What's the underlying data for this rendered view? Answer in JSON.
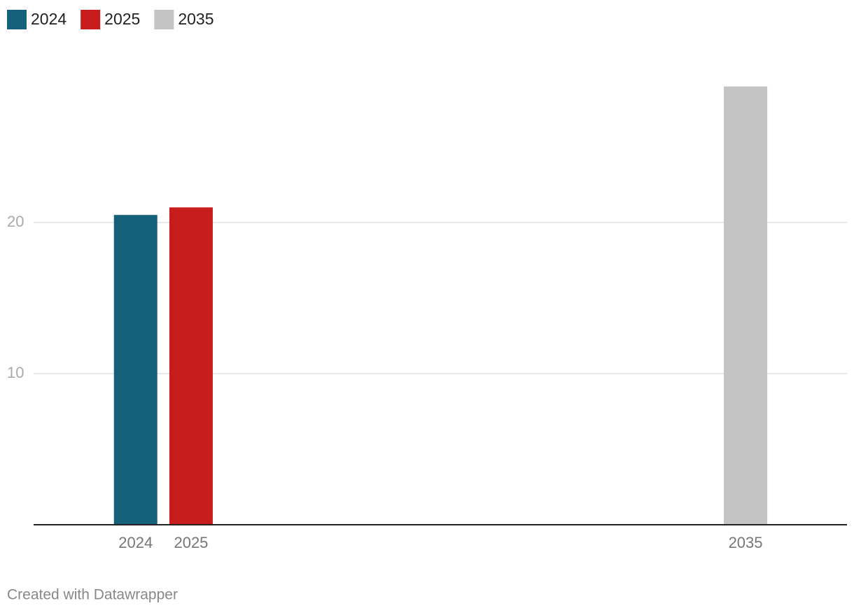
{
  "chart_data": {
    "type": "bar",
    "x": [
      2024,
      2025,
      2035
    ],
    "series": [
      {
        "name": "2024",
        "color": "#15607a",
        "values": [
          20.5,
          null,
          null
        ]
      },
      {
        "name": "2025",
        "color": "#c71e1d",
        "values": [
          null,
          21,
          null
        ]
      },
      {
        "name": "2035",
        "color": "#c4c4c4",
        "values": [
          null,
          null,
          29
        ]
      }
    ],
    "xlim": [
      2022.16,
      2036.83
    ],
    "ylim": [
      0,
      30
    ],
    "yticks": [
      10,
      20
    ],
    "grid": true,
    "legend": "top-left"
  },
  "footer": "Created with Datawrapper"
}
